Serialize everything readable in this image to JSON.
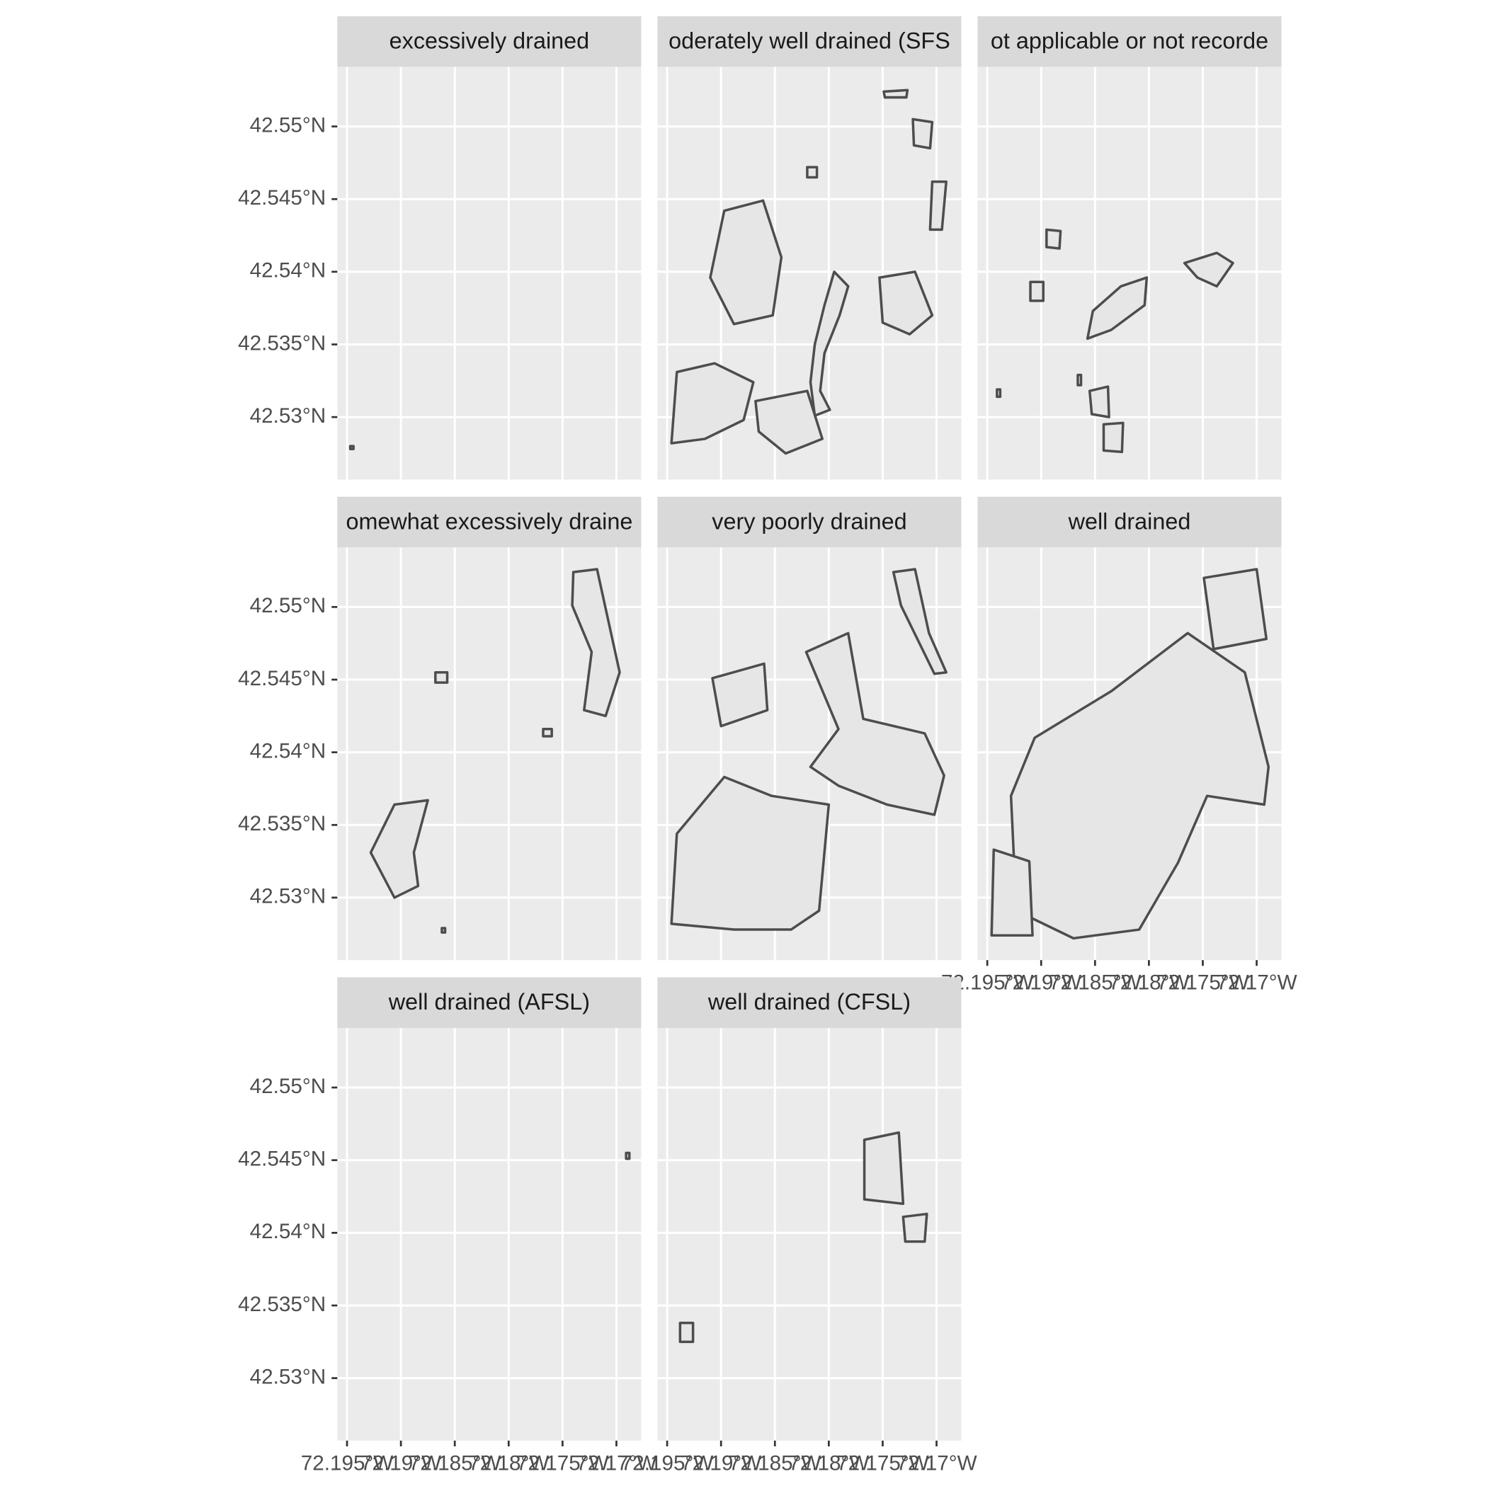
{
  "chart_data": {
    "type": "map",
    "xlim": [
      -72.1959,
      -72.1677
    ],
    "ylim": [
      42.5257,
      42.5541
    ],
    "xticks": [
      {
        "value": -72.195,
        "label": "72.195°W"
      },
      {
        "value": -72.19,
        "label": "72.19°W"
      },
      {
        "value": -72.185,
        "label": "72.185°W"
      },
      {
        "value": -72.18,
        "label": "72.18°W"
      },
      {
        "value": -72.175,
        "label": "72.175°W"
      },
      {
        "value": -72.17,
        "label": "72.17°W"
      }
    ],
    "yticks": [
      {
        "value": 42.53,
        "label": "42.53°N"
      },
      {
        "value": 42.535,
        "label": "42.535°N"
      },
      {
        "value": 42.54,
        "label": "42.54°N"
      },
      {
        "value": 42.545,
        "label": "42.545°N"
      },
      {
        "value": 42.55,
        "label": "42.55°N"
      }
    ],
    "grid": true,
    "columns": 3,
    "panel_color": "#ebebeb",
    "strip_color": "#d9d9d9",
    "grid_color": "#ffffff",
    "stroke_color": "#4d4d4d",
    "fill_color": "#e6e6e6",
    "panels": [
      {
        "title": "excessively drained",
        "shapes": [
          [
            [
              -72.1947,
              42.528
            ],
            [
              -72.1944,
              42.528
            ],
            [
              -72.1944,
              42.5278
            ],
            [
              -72.1947,
              42.5278
            ]
          ]
        ]
      },
      {
        "title": "oderately well drained (SFS",
        "shapes": [
          [
            [
              -72.1795,
              42.54
            ],
            [
              -72.1782,
              42.539
            ],
            [
              -72.179,
              42.537
            ],
            [
              -72.1804,
              42.5344
            ],
            [
              -72.1808,
              42.5318
            ],
            [
              -72.1799,
              42.5305
            ],
            [
              -72.1813,
              42.5301
            ],
            [
              -72.1817,
              42.5324
            ],
            [
              -72.1813,
              42.535
            ],
            [
              -72.1804,
              42.5377
            ]
          ],
          [
            [
              -72.1941,
              42.5331
            ],
            [
              -72.1906,
              42.5337
            ],
            [
              -72.187,
              42.5324
            ],
            [
              -72.1879,
              42.5298
            ],
            [
              -72.1915,
              42.5285
            ],
            [
              -72.1946,
              42.5282
            ]
          ],
          [
            [
              -72.1897,
              42.5442
            ],
            [
              -72.1861,
              42.5449
            ],
            [
              -72.1844,
              42.541
            ],
            [
              -72.1852,
              42.537
            ],
            [
              -72.1888,
              42.5364
            ],
            [
              -72.191,
              42.5396
            ]
          ],
          [
            [
              -72.1749,
              42.5524
            ],
            [
              -72.1727,
              42.5525
            ],
            [
              -72.1728,
              42.552
            ],
            [
              -72.1748,
              42.552
            ]
          ],
          [
            [
              -72.1722,
              42.5505
            ],
            [
              -72.1704,
              42.5503
            ],
            [
              -72.1706,
              42.5485
            ],
            [
              -72.1721,
              42.5487
            ]
          ],
          [
            [
              -72.1704,
              42.5462
            ],
            [
              -72.1691,
              42.5462
            ],
            [
              -72.1695,
              42.5429
            ],
            [
              -72.1706,
              42.5429
            ]
          ],
          [
            [
              -72.1753,
              42.5396
            ],
            [
              -72.172,
              42.54
            ],
            [
              -72.1704,
              42.537
            ],
            [
              -72.1725,
              42.5357
            ],
            [
              -72.175,
              42.5365
            ]
          ],
          [
            [
              -72.1868,
              42.5311
            ],
            [
              -72.182,
              42.5318
            ],
            [
              -72.1806,
              42.5285
            ],
            [
              -72.184,
              42.5275
            ],
            [
              -72.1865,
              42.529
            ]
          ],
          [
            [
              -72.182,
              42.5472
            ],
            [
              -72.1811,
              42.5472
            ],
            [
              -72.1811,
              42.5465
            ],
            [
              -72.182,
              42.5465
            ]
          ]
        ]
      },
      {
        "title": "ot applicable or not recorde",
        "shapes": [
          [
            [
              -72.1895,
              42.5429
            ],
            [
              -72.1882,
              42.5428
            ],
            [
              -72.1883,
              42.5416
            ],
            [
              -72.1895,
              42.5417
            ]
          ],
          [
            [
              -72.191,
              42.5393
            ],
            [
              -72.1898,
              42.5393
            ],
            [
              -72.1898,
              42.538
            ],
            [
              -72.191,
              42.538
            ]
          ],
          [
            [
              -72.1826,
              42.539
            ],
            [
              -72.1802,
              42.5396
            ],
            [
              -72.1804,
              42.5377
            ],
            [
              -72.1835,
              42.536
            ],
            [
              -72.1857,
              42.5354
            ],
            [
              -72.1852,
              42.5373
            ]
          ],
          [
            [
              -72.1767,
              42.5406
            ],
            [
              -72.1737,
              42.5413
            ],
            [
              -72.1722,
              42.5406
            ],
            [
              -72.1737,
              42.539
            ],
            [
              -72.1755,
              42.5396
            ]
          ],
          [
            [
              -72.1855,
              42.5318
            ],
            [
              -72.1838,
              42.5321
            ],
            [
              -72.1837,
              42.53
            ],
            [
              -72.1853,
              42.5302
            ]
          ],
          [
            [
              -72.1842,
              42.5295
            ],
            [
              -72.1824,
              42.5296
            ],
            [
              -72.1825,
              42.5276
            ],
            [
              -72.1842,
              42.5277
            ]
          ],
          [
            [
              -72.1941,
              42.5319
            ],
            [
              -72.1938,
              42.5319
            ],
            [
              -72.1938,
              42.5314
            ],
            [
              -72.1941,
              42.5314
            ]
          ],
          [
            [
              -72.1866,
              42.5329
            ],
            [
              -72.1863,
              42.5329
            ],
            [
              -72.1863,
              42.5322
            ],
            [
              -72.1866,
              42.5322
            ]
          ]
        ]
      },
      {
        "title": "omewhat excessively draine",
        "shapes": [
          [
            [
              -72.1906,
              42.5364
            ],
            [
              -72.1875,
              42.5367
            ],
            [
              -72.1888,
              42.5331
            ],
            [
              -72.1884,
              42.5308
            ],
            [
              -72.1906,
              42.53
            ],
            [
              -72.1928,
              42.5331
            ]
          ],
          [
            [
              -72.174,
              42.5524
            ],
            [
              -72.1718,
              42.5526
            ],
            [
              -72.1705,
              42.5482
            ],
            [
              -72.1697,
              42.5455
            ],
            [
              -72.171,
              42.5425
            ],
            [
              -72.173,
              42.5429
            ],
            [
              -72.1723,
              42.5469
            ],
            [
              -72.1741,
              42.5501
            ]
          ],
          [
            [
              -72.1868,
              42.5455
            ],
            [
              -72.1857,
              42.5455
            ],
            [
              -72.1857,
              42.5448
            ],
            [
              -72.1868,
              42.5448
            ]
          ],
          [
            [
              -72.1768,
              42.5416
            ],
            [
              -72.176,
              42.5416
            ],
            [
              -72.176,
              42.5411
            ],
            [
              -72.1768,
              42.5411
            ]
          ],
          [
            [
              -72.1862,
              42.5279
            ],
            [
              -72.1859,
              42.5279
            ],
            [
              -72.1859,
              42.5276
            ],
            [
              -72.1862,
              42.5276
            ]
          ]
        ]
      },
      {
        "title": "very poorly drained",
        "shapes": [
          [
            [
              -72.174,
              42.5524
            ],
            [
              -72.172,
              42.5526
            ],
            [
              -72.1707,
              42.5482
            ],
            [
              -72.1691,
              42.5455
            ],
            [
              -72.1702,
              42.5454
            ],
            [
              -72.1733,
              42.5501
            ]
          ],
          [
            [
              -72.1821,
              42.5469
            ],
            [
              -72.1782,
              42.5482
            ],
            [
              -72.1768,
              42.5423
            ],
            [
              -72.1711,
              42.5413
            ],
            [
              -72.1693,
              42.5384
            ],
            [
              -72.1702,
              42.5357
            ],
            [
              -72.1746,
              42.5364
            ],
            [
              -72.1791,
              42.5377
            ],
            [
              -72.1817,
              42.539
            ],
            [
              -72.1791,
              42.5416
            ]
          ],
          [
            [
              -72.1908,
              42.5451
            ],
            [
              -72.186,
              42.5461
            ],
            [
              -72.1857,
              42.5429
            ],
            [
              -72.19,
              42.5418
            ]
          ],
          [
            [
              -72.1941,
              42.5344
            ],
            [
              -72.1897,
              42.5383
            ],
            [
              -72.1853,
              42.537
            ],
            [
              -72.18,
              42.5364
            ],
            [
              -72.1809,
              42.5291
            ],
            [
              -72.1835,
              42.5278
            ],
            [
              -72.1888,
              42.5278
            ],
            [
              -72.1946,
              42.5282
            ]
          ]
        ]
      },
      {
        "title": "well drained",
        "shapes": [
          [
            [
              -72.1906,
              42.541
            ],
            [
              -72.1835,
              42.5442
            ],
            [
              -72.1764,
              42.5482
            ],
            [
              -72.1711,
              42.5455
            ],
            [
              -72.1689,
              42.539
            ],
            [
              -72.1693,
              42.5364
            ],
            [
              -72.1746,
              42.537
            ],
            [
              -72.1773,
              42.5324
            ],
            [
              -72.1809,
              42.5278
            ],
            [
              -72.187,
              42.5272
            ],
            [
              -72.1923,
              42.5291
            ],
            [
              -72.1928,
              42.537
            ]
          ],
          [
            [
              -72.1749,
              42.552
            ],
            [
              -72.17,
              42.5526
            ],
            [
              -72.1691,
              42.5478
            ],
            [
              -72.174,
              42.5471
            ]
          ],
          [
            [
              -72.1944,
              42.5333
            ],
            [
              -72.1911,
              42.5325
            ],
            [
              -72.1908,
              42.5274
            ],
            [
              -72.1946,
              42.5274
            ]
          ]
        ]
      },
      {
        "title": "well drained (AFSL)",
        "shapes": [
          [
            [
              -72.1691,
              42.5455
            ],
            [
              -72.1688,
              42.5455
            ],
            [
              -72.1688,
              42.5451
            ],
            [
              -72.1691,
              42.5451
            ]
          ]
        ]
      },
      {
        "title": "well drained (CFSL)",
        "shapes": [
          [
            [
              -72.1767,
              42.5464
            ],
            [
              -72.1735,
              42.5469
            ],
            [
              -72.1731,
              42.542
            ],
            [
              -72.1767,
              42.5423
            ]
          ],
          [
            [
              -72.1731,
              42.5411
            ],
            [
              -72.1709,
              42.5413
            ],
            [
              -72.1711,
              42.5394
            ],
            [
              -72.1729,
              42.5394
            ]
          ],
          [
            [
              -72.1938,
              42.5338
            ],
            [
              -72.1926,
              42.5338
            ],
            [
              -72.1926,
              42.5325
            ],
            [
              -72.1938,
              42.5325
            ]
          ]
        ]
      }
    ]
  }
}
